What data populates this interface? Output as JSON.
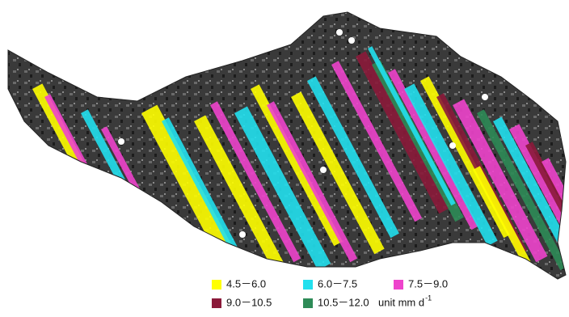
{
  "legend": {
    "items": [
      {
        "label": "4.5－6.0",
        "color": "#ffff00"
      },
      {
        "label": "6.0－7.5",
        "color": "#22e0ee"
      },
      {
        "label": "7.5－9.0",
        "color": "#ee44cc"
      },
      {
        "label": "9.0－10.5",
        "color": "#8b1a3a"
      },
      {
        "label": "10.5－12.0",
        "color": "#2e8b57"
      }
    ],
    "unit": "unit  mm d",
    "unit_exponent": "-1"
  }
}
